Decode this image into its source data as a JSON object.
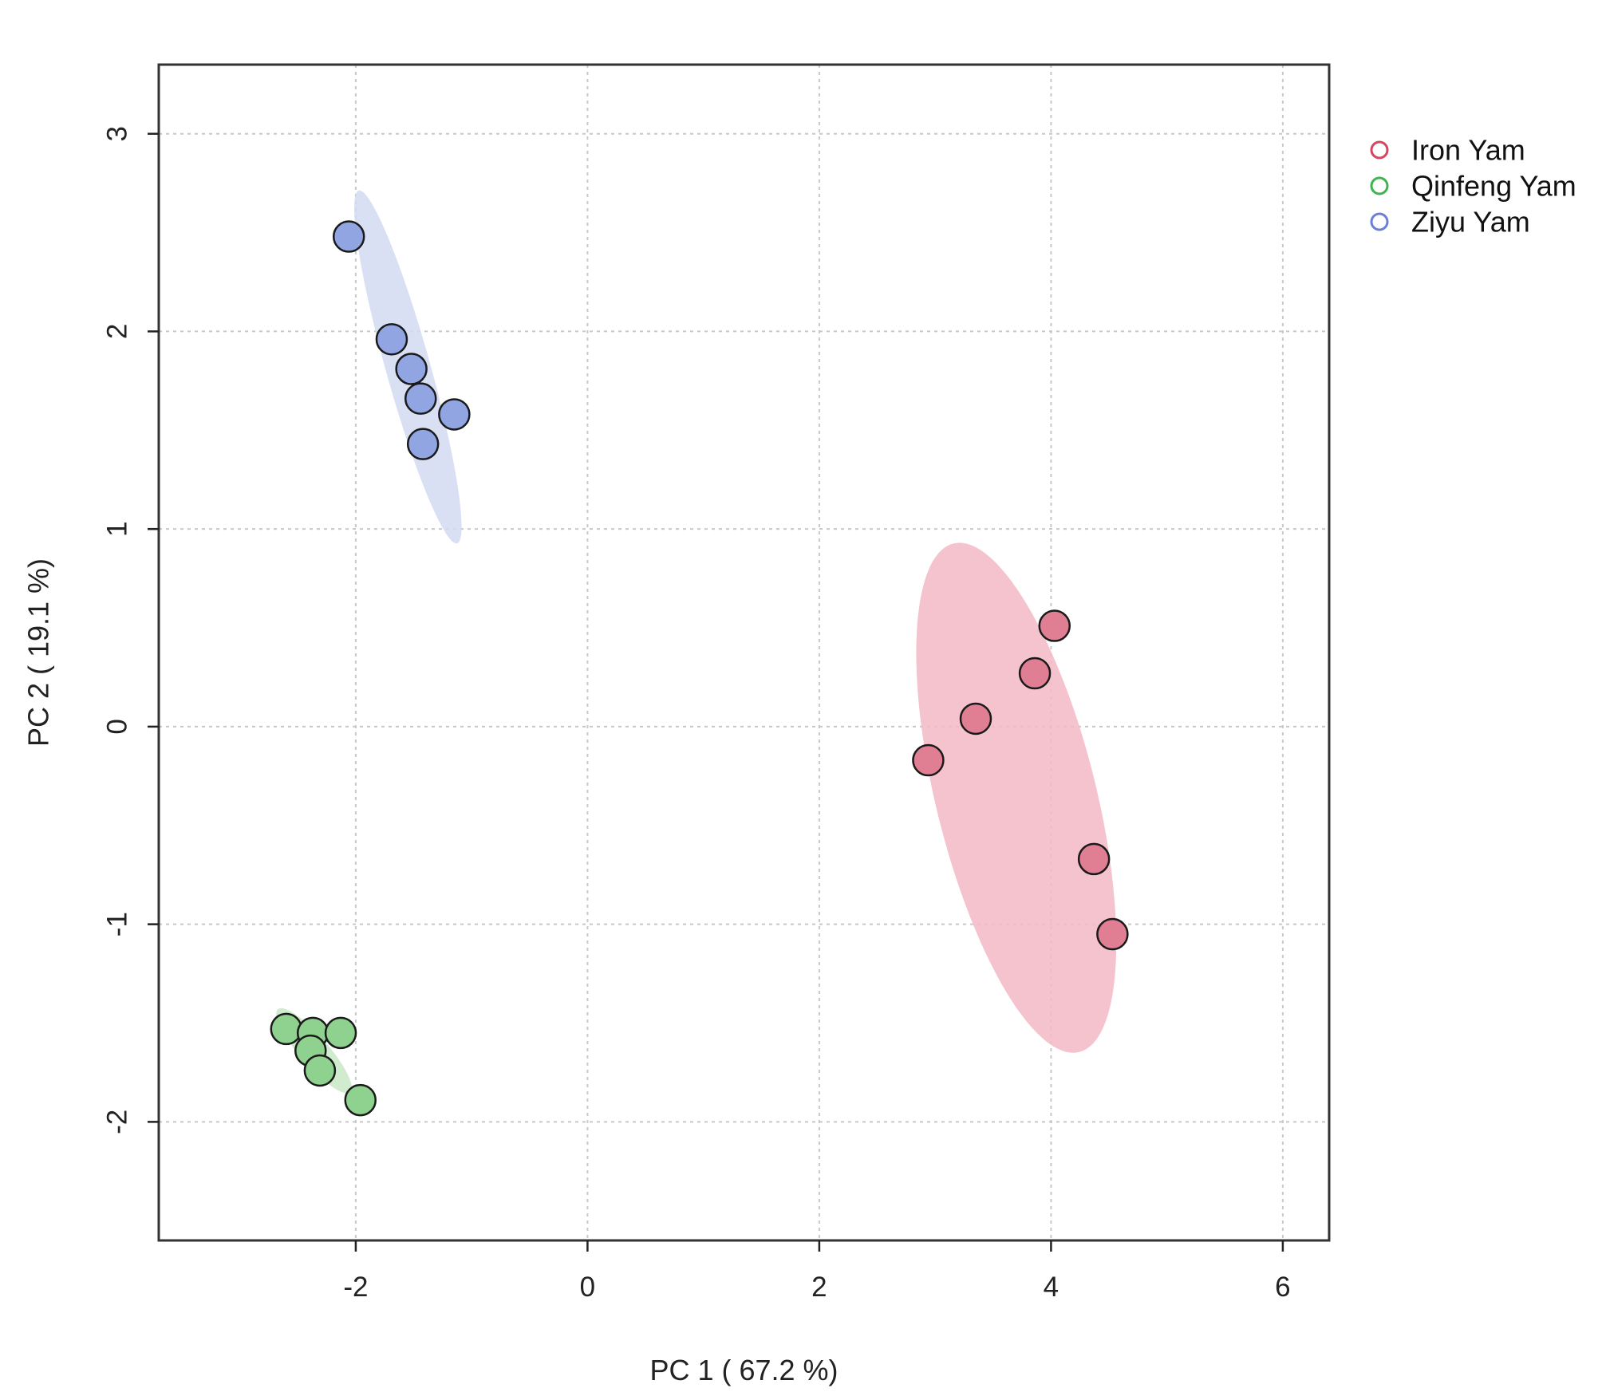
{
  "chart_data": {
    "type": "scatter",
    "title": "",
    "xlabel": "PC 1 ( 67.2 %)",
    "ylabel": "PC 2 ( 19.1 %)",
    "xlim": [
      -3.7,
      6.4
    ],
    "ylim": [
      -2.6,
      3.35
    ],
    "xticks": [
      -2,
      0,
      2,
      4,
      6
    ],
    "yticks": [
      -2,
      -1,
      0,
      1,
      2,
      3
    ],
    "xtick_labels": [
      "-2",
      "0",
      "2",
      "4",
      "6"
    ],
    "ytick_labels": [
      "-2",
      "-1",
      "0",
      "1",
      "2",
      "3"
    ],
    "grid": true,
    "legend_position": "top-right, outside plot",
    "series": [
      {
        "name": "Iron Yam",
        "color": "#e07f94",
        "legend_color": "#d6455f",
        "ellipse_color": "#f3b8c6",
        "ellipse": {
          "cx": 3.7,
          "cy": -0.36,
          "rx": 1.41,
          "ry": 0.65,
          "angle_deg": -63
        },
        "points": [
          {
            "x": 4.03,
            "y": 0.51
          },
          {
            "x": 3.86,
            "y": 0.27
          },
          {
            "x": 3.35,
            "y": 0.04
          },
          {
            "x": 2.94,
            "y": -0.17
          },
          {
            "x": 4.37,
            "y": -0.67
          },
          {
            "x": 4.53,
            "y": -1.05
          }
        ]
      },
      {
        "name": "Qinfeng Yam",
        "color": "#8fd18f",
        "legend_color": "#3fb34f",
        "ellipse_color": "#c9e8c6",
        "ellipse": {
          "cx": -2.36,
          "cy": -1.64,
          "rx": 0.38,
          "ry": 0.09,
          "angle_deg": -32
        },
        "points": [
          {
            "x": -2.6,
            "y": -1.53
          },
          {
            "x": -2.37,
            "y": -1.55
          },
          {
            "x": -2.13,
            "y": -1.55
          },
          {
            "x": -2.39,
            "y": -1.64
          },
          {
            "x": -2.31,
            "y": -1.74
          },
          {
            "x": -1.96,
            "y": -1.89
          }
        ]
      },
      {
        "name": "Ziyu Yam",
        "color": "#91a5e3",
        "legend_color": "#6b7fd6",
        "ellipse_color": "#d3daf2",
        "ellipse": {
          "cx": -1.55,
          "cy": 1.82,
          "rx": 0.99,
          "ry": 0.18,
          "angle_deg": -64
        },
        "points": [
          {
            "x": -2.06,
            "y": 2.48
          },
          {
            "x": -1.69,
            "y": 1.96
          },
          {
            "x": -1.52,
            "y": 1.81
          },
          {
            "x": -1.44,
            "y": 1.66
          },
          {
            "x": -1.15,
            "y": 1.58
          },
          {
            "x": -1.42,
            "y": 1.43
          }
        ]
      }
    ]
  }
}
